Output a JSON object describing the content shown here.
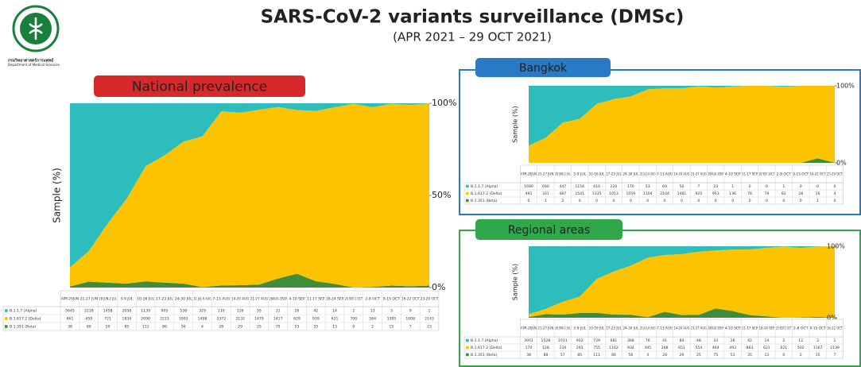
{
  "header": {
    "title": "SARS-CoV-2 variants surveillance (DMSc)",
    "subtitle": "(APR 2021 – 29 OCT 2021)",
    "logo_text": "กรมวิทยาศาสตร์การแพทย์",
    "logo_subtext": "Department of Medical Sciences"
  },
  "chart_data": [
    {
      "type": "stacked_area_percent",
      "title": "National prevalence",
      "y_label": "Sample (%)",
      "categories": [
        "APR-20JUN",
        "21-27 JUN",
        "28 JUN-2 JUL",
        "3-9 JUL",
        "10-16 JUL",
        "17-23 JUL",
        "24-30 JUL",
        "31 JUL-6 AUG",
        "7-13 AUG",
        "14-20 AUG",
        "21-27 AUG",
        "28AUG-3SEP",
        "4-10 SEP",
        "11-17 SEP",
        "18-24 SEP",
        "25 SEP-1 OCT",
        "2-8 OCT",
        "9-15 OCT",
        "16-22 OCT",
        "23-29 OCT"
      ],
      "series": [
        {
          "name": "B.1.1.7 (Alpha)",
          "color": "#2dbdbd",
          "values": [
            5645,
            2218,
            1458,
            2058,
            1139,
            905,
            538,
            329,
            110,
            116,
            55,
            31,
            26,
            42,
            14,
            2,
            13,
            3,
            9,
            1
          ]
        },
        {
          "name": "B.1.617.2 (Delta)",
          "color": "#fcc300",
          "values": [
            661,
            459,
            721,
            1834,
            2090,
            2215,
            1993,
            1498,
            2372,
            2132,
            1479,
            1417,
            629,
            939,
            621,
            700,
            584,
            1395,
            1008,
            2143
          ]
        },
        {
          "name": "B.1.351 (Beta)",
          "color": "#3f8c3a",
          "values": [
            38,
            89,
            59,
            85,
            111,
            86,
            56,
            4,
            28,
            29,
            25,
            75,
            53,
            35,
            13,
            0,
            2,
            15,
            7,
            23
          ]
        }
      ],
      "ylim": [
        0,
        100
      ],
      "yticks": [
        {
          "value": 0,
          "label": "0%"
        },
        {
          "value": 50,
          "label": "50%"
        },
        {
          "value": 100,
          "label": "100%"
        }
      ]
    },
    {
      "type": "stacked_area_percent",
      "title": "Bangkok",
      "y_label": "Sample (%)",
      "categories": [
        "APR-20JUN",
        "21-27 JUN",
        "28 JUN-2 JUL",
        "3-9 JUL",
        "10-16 JUL",
        "17-23 JUL",
        "24-30 JUL",
        "31 JUL-6 AUG",
        "7-13 AUG",
        "14-20 AUG",
        "21-27 AUG",
        "28AUG-3SEP",
        "4-10 SEP",
        "11-17 SEP",
        "18 SEP-1OCT",
        "2-8 OCT",
        "9-15 OCT",
        "16-22 OCT",
        "23-29 OCT"
      ],
      "series": [
        {
          "name": "B.1.1.7 (Alpha)",
          "color": "#2dbdbd",
          "values": [
            1690,
            690,
            447,
            1156,
            410,
            220,
            170,
            53,
            69,
            50,
            7,
            23,
            1,
            0,
            0,
            1,
            0,
            0,
            0
          ]
        },
        {
          "name": "B.1.617.2 (Delta)",
          "color": "#fcc300",
          "values": [
            491,
            331,
            487,
            1541,
            1335,
            1053,
            1059,
            1104,
            2104,
            1481,
            925,
            953,
            136,
            78,
            79,
            82,
            28,
            16,
            4
          ]
        },
        {
          "name": "B.1.351 (Beta)",
          "color": "#3f8c3a",
          "values": [
            0,
            1,
            2,
            0,
            0,
            0,
            0,
            0,
            0,
            0,
            0,
            0,
            0,
            0,
            0,
            0,
            0,
            1,
            0
          ]
        }
      ],
      "ylim": [
        0,
        100
      ],
      "yticks": [
        {
          "value": 0,
          "label": "0%"
        },
        {
          "value": 100,
          "label": "100%"
        }
      ]
    },
    {
      "type": "stacked_area_percent",
      "title": "Regional areas",
      "y_label": "Sample (%)",
      "categories": [
        "APR-20JUN",
        "21-27 JUN",
        "28 JUN-2 JUL",
        "3-9 JUL",
        "10-16 JUL",
        "17-23 JUL",
        "24-30 JUL",
        "31 JUL-6 AUG",
        "7-13 AUG",
        "14-20 AUG",
        "21-27 AUG",
        "28AUG-3SEP",
        "4-10 SEP",
        "11-17 SEP",
        "18-24 SEP",
        "25 SEP-1 OCT",
        "2-8 OCT",
        "9-15 OCT",
        "16-22 OCT"
      ],
      "series": [
        {
          "name": "B.1.1.7 (Alpha)",
          "color": "#2dbdbd",
          "values": [
            3951,
            1528,
            1011,
            902,
            729,
            681,
            368,
            76,
            41,
            84,
            48,
            33,
            26,
            42,
            14,
            2,
            12,
            3,
            1
          ]
        },
        {
          "name": "B.1.617.2 (Delta)",
          "color": "#fcc300",
          "values": [
            170,
            128,
            234,
            293,
            755,
            1162,
            934,
            395,
            268,
            651,
            554,
            464,
            493,
            863,
            621,
            621,
            502,
            1167,
            2139
          ]
        },
        {
          "name": "B.1.351 (Beta)",
          "color": "#3f8c3a",
          "values": [
            38,
            88,
            57,
            85,
            111,
            86,
            56,
            4,
            28,
            29,
            25,
            75,
            53,
            35,
            13,
            0,
            2,
            15,
            7
          ]
        }
      ],
      "ylim": [
        0,
        100
      ],
      "yticks": [
        {
          "value": 0,
          "label": "0%"
        },
        {
          "value": 100,
          "label": "100%"
        }
      ]
    }
  ]
}
